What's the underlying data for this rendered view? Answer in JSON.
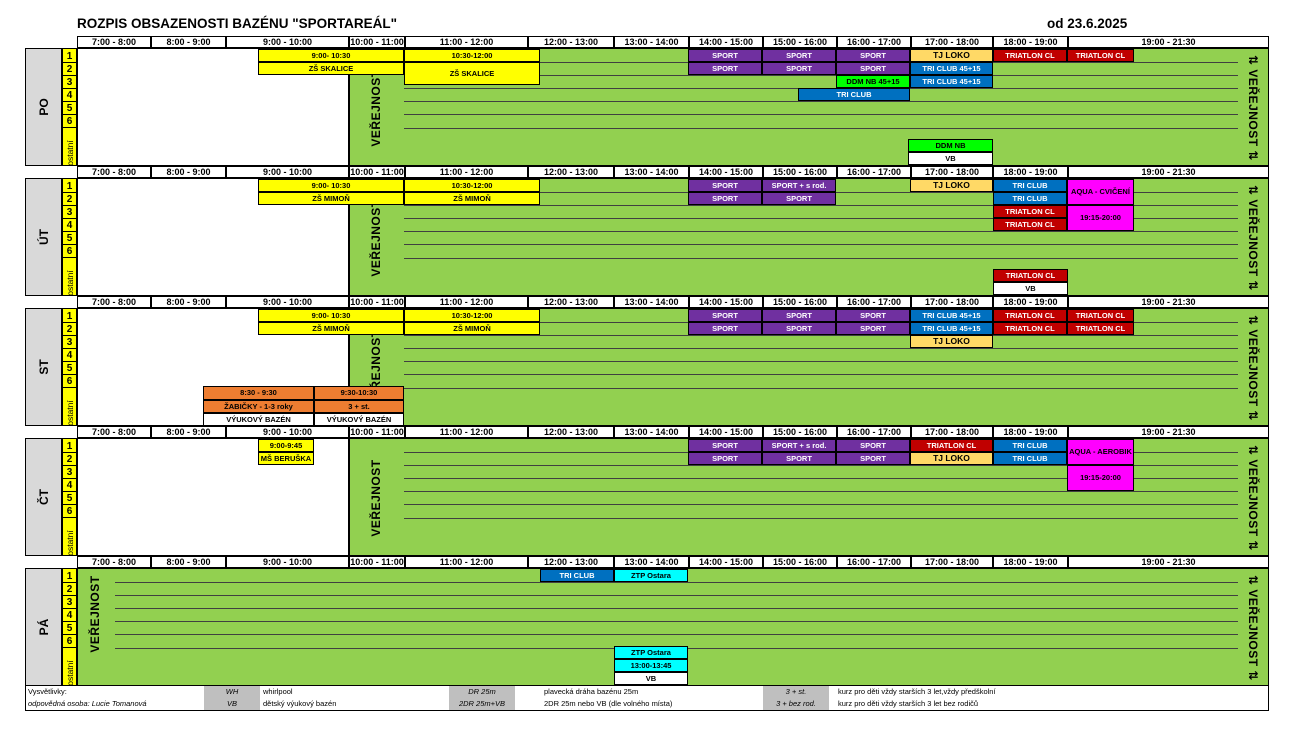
{
  "title": "ROZPIS OBSAZENOSTI BAZÉNU \"SPORTAREÁL\"",
  "date": "od 23.6.2025",
  "time_slots": [
    "7:00 - 8:00",
    "8:00 - 9:00",
    "9:00 - 10:00",
    "10:00 - 11:00",
    "11:00 - 12:00",
    "12:00 - 13:00",
    "13:00 - 14:00",
    "14:00 - 15:00",
    "15:00 - 16:00",
    "16:00 - 17:00",
    "17:00 - 18:00",
    "18:00 - 19:00",
    "19:00 - 21:30"
  ],
  "lanes": [
    "1",
    "2",
    "3",
    "4",
    "5",
    "6"
  ],
  "ostatni_label": "ostatní",
  "public_label": "VEŘEJNOST",
  "public_label_right": "⇅ VEŘEJNOST ⇅",
  "days": [
    {
      "label": "PO",
      "blocks": [
        {
          "text": "9:00- 10:30",
          "color": "yellow"
        },
        {
          "text": "ZŠ SKALICE",
          "color": "yellow"
        },
        {
          "text": "10:30-12:00",
          "color": "yellow"
        },
        {
          "text": "ZŠ SKALICE",
          "color": "yellow"
        },
        {
          "text": "SPORT",
          "color": "purple"
        },
        {
          "text": "SPORT",
          "color": "purple"
        },
        {
          "text": "SPORT",
          "color": "purple"
        },
        {
          "text": "SPORT",
          "color": "purple"
        },
        {
          "text": "SPORT",
          "color": "purple"
        },
        {
          "text": "SPORT",
          "color": "purple"
        },
        {
          "text": "TJ LOKO",
          "color": "peach"
        },
        {
          "text": "TRI CLUB 45+15",
          "color": "blue"
        },
        {
          "text": "TRI CLUB 45+15",
          "color": "blue"
        },
        {
          "text": "DDM NB 45+15",
          "color": "lgreen"
        },
        {
          "text": "TRIATLON CL",
          "color": "red"
        },
        {
          "text": "TRIATLON CL",
          "color": "red"
        },
        {
          "text": "TRI CLUB",
          "color": "blue"
        },
        {
          "text": "DDM NB",
          "color": "lgreen"
        },
        {
          "text": "VB",
          "color": "whiteblk"
        }
      ]
    },
    {
      "label": "ÚT",
      "blocks": [
        {
          "text": "9:00- 10:30",
          "color": "yellow"
        },
        {
          "text": "ZŠ MIMOŇ",
          "color": "yellow"
        },
        {
          "text": "10:30-12:00",
          "color": "yellow"
        },
        {
          "text": "ZŠ MIMOŇ",
          "color": "yellow"
        },
        {
          "text": "SPORT",
          "color": "purple"
        },
        {
          "text": "SPORT + s rod.",
          "color": "purple"
        },
        {
          "text": "SPORT",
          "color": "purple"
        },
        {
          "text": "SPORT",
          "color": "purple"
        },
        {
          "text": "TJ LOKO",
          "color": "peach"
        },
        {
          "text": "TRI CLUB",
          "color": "blue"
        },
        {
          "text": "TRI CLUB",
          "color": "blue"
        },
        {
          "text": "TRIATLON CL",
          "color": "red"
        },
        {
          "text": "TRIATLON CL",
          "color": "red"
        },
        {
          "text": "AQUA - CVIČENÍ",
          "color": "magenta"
        },
        {
          "text": "19:15-20:00",
          "color": "magenta"
        },
        {
          "text": "TRIATLON CL",
          "color": "red"
        },
        {
          "text": "VB",
          "color": "whiteblk"
        }
      ]
    },
    {
      "label": "ST",
      "blocks": [
        {
          "text": "9:00- 10:30",
          "color": "yellow"
        },
        {
          "text": "ZŠ MIMOŇ",
          "color": "yellow"
        },
        {
          "text": "10:30-12:00",
          "color": "yellow"
        },
        {
          "text": "ZŠ MIMOŇ",
          "color": "yellow"
        },
        {
          "text": "SPORT",
          "color": "purple"
        },
        {
          "text": "SPORT",
          "color": "purple"
        },
        {
          "text": "SPORT",
          "color": "purple"
        },
        {
          "text": "SPORT",
          "color": "purple"
        },
        {
          "text": "SPORT",
          "color": "purple"
        },
        {
          "text": "SPORT",
          "color": "purple"
        },
        {
          "text": "TRI CLUB 45+15",
          "color": "blue"
        },
        {
          "text": "TRI CLUB 45+15",
          "color": "blue"
        },
        {
          "text": "TJ LOKO",
          "color": "peach"
        },
        {
          "text": "TRIATLON CL",
          "color": "red"
        },
        {
          "text": "TRIATLON CL",
          "color": "red"
        },
        {
          "text": "TRIATLON CL",
          "color": "red"
        },
        {
          "text": "TRIATLON CL",
          "color": "red"
        },
        {
          "text": "8:30 - 9:30",
          "color": "orange"
        },
        {
          "text": "ŽABIČKY - 1-3 roky",
          "color": "orange"
        },
        {
          "text": "9:30-10:30",
          "color": "orange"
        },
        {
          "text": "3 + st.",
          "color": "orange"
        },
        {
          "text": "VÝUKOVÝ BAZÉN",
          "color": "whiteblk"
        },
        {
          "text": "VÝUKOVÝ BAZÉN",
          "color": "whiteblk"
        }
      ]
    },
    {
      "label": "ČT",
      "blocks": [
        {
          "text": "9:00-9:45",
          "color": "yellow"
        },
        {
          "text": "MŠ BERUŠKA",
          "color": "yellow"
        },
        {
          "text": "SPORT",
          "color": "purple"
        },
        {
          "text": "SPORT",
          "color": "purple"
        },
        {
          "text": "SPORT + s rod.",
          "color": "purple"
        },
        {
          "text": "SPORT",
          "color": "purple"
        },
        {
          "text": "SPORT",
          "color": "purple"
        },
        {
          "text": "SPORT",
          "color": "purple"
        },
        {
          "text": "TRIATLON CL",
          "color": "red"
        },
        {
          "text": "TJ LOKO",
          "color": "peach"
        },
        {
          "text": "TRI CLUB",
          "color": "blue"
        },
        {
          "text": "TRI CLUB",
          "color": "blue"
        },
        {
          "text": "AQUA - AEROBIK",
          "color": "magenta"
        },
        {
          "text": "19:15-20:00",
          "color": "magenta"
        }
      ]
    },
    {
      "label": "PÁ",
      "blocks": [
        {
          "text": "TRI CLUB",
          "color": "blue"
        },
        {
          "text": "ZTP Ostara",
          "color": "cyan"
        },
        {
          "text": "ZTP Ostara",
          "color": "cyan"
        },
        {
          "text": "13:00-13:45",
          "color": "cyan"
        },
        {
          "text": "VB",
          "color": "whiteblk"
        }
      ]
    }
  ],
  "legend": {
    "title": "Vysvětlivky:",
    "responsible": "odpovědná osoba: Lucie Tomanová",
    "items": [
      {
        "abbr": "WH",
        "desc": "whirlpool"
      },
      {
        "abbr": "VB",
        "desc": "dětský výukový bazén"
      },
      {
        "abbr": "DR 25m",
        "desc": "plavecká dráha bazénu 25m"
      },
      {
        "abbr": "2DR 25m+VB",
        "desc": "2DR 25m nebo VB (dle volného místa)"
      },
      {
        "abbr": "3 + st.",
        "desc": "kurz pro děti vždy starších 3 let,vždy předškolní"
      },
      {
        "abbr": "3 + bez rod.",
        "desc": "kurz pro děti vždy starších 3 let bez rodičů"
      }
    ]
  },
  "colors": {
    "public_area": "#92d050",
    "sport": "#7030a0",
    "triatlon": "#c00000",
    "tri_club": "#0070c0",
    "ddm": "#00ff00",
    "tj_loko": "#ffd966",
    "school": "#ffff00",
    "aqua": "#ff00ff",
    "ztp": "#00ffff",
    "kids_course": "#ed7d31"
  }
}
